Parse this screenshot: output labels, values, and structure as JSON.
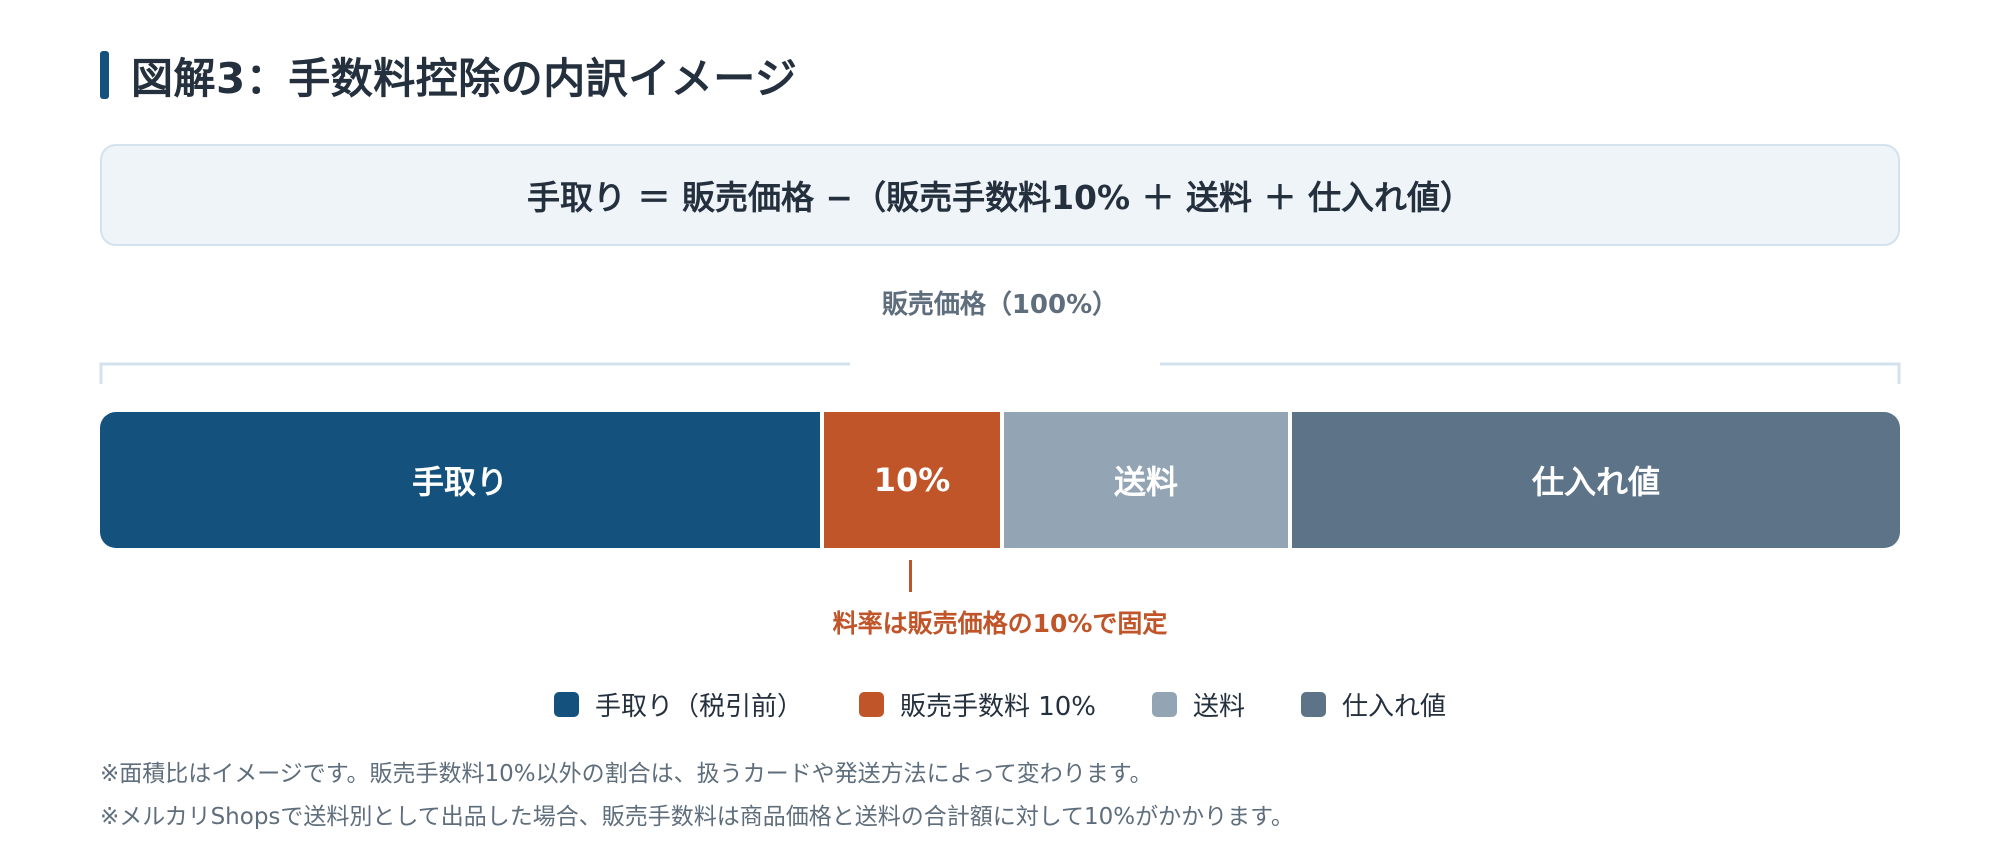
{
  "title": "図解3：手数料控除の内訳イメージ",
  "formula": "手取り ＝ 販売価格 −（販売手数料10% ＋ 送料 ＋ 仕入れ値）",
  "span_label": "販売価格（100%）",
  "bar": {
    "segments": [
      {
        "label": "手取り",
        "share": 0.4,
        "color": "#14527d"
      },
      {
        "label": "10%",
        "share": 0.1,
        "color": "#c0552a"
      },
      {
        "label": "送料",
        "share": 0.16,
        "color": "#93a5b4"
      },
      {
        "label": "仕入れ値",
        "share": 0.34,
        "color": "#5d7388"
      }
    ]
  },
  "callout": "料率は販売価格の10%で固定",
  "legend": [
    {
      "label": "手取り（税引前）",
      "color": "#14527d"
    },
    {
      "label": "販売手数料 10%",
      "color": "#c0552a"
    },
    {
      "label": "送料",
      "color": "#93a5b4"
    },
    {
      "label": "仕入れ値",
      "color": "#5d7388"
    }
  ],
  "notes": [
    "※面積比はイメージです。販売手数料10%以外の割合は、扱うカードや発送方法によって変わります。",
    "※メルカリShopsで送料別として出品した場合、販売手数料は商品価格と送料の合計額に対して10%がかかります。"
  ]
}
